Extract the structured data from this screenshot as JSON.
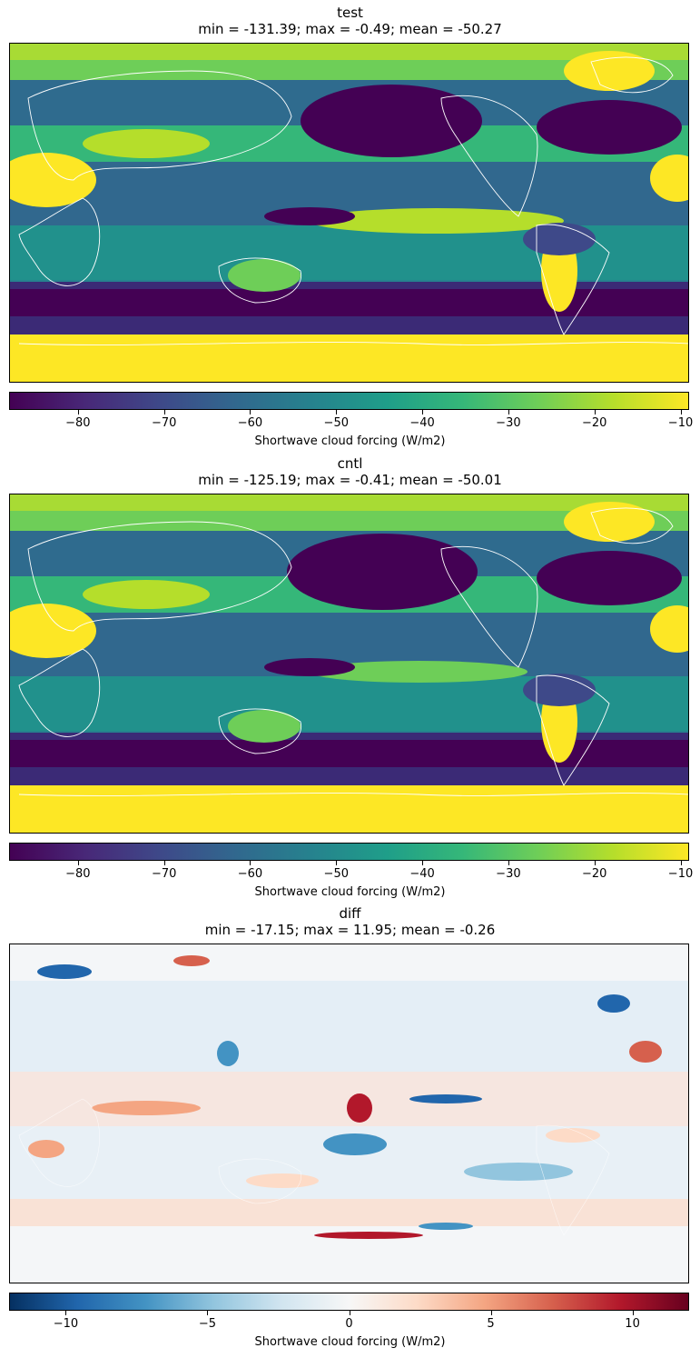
{
  "chart_data": [
    {
      "type": "heatmap",
      "name": "test",
      "subtitle": "min = -131.39; max = -0.49; mean = -50.27",
      "colormap": "viridis",
      "colorbar_label": "Shortwave cloud forcing (W/m2)",
      "colorbar_range": [
        -88,
        -9
      ],
      "colorbar_ticks": [
        -80,
        -70,
        -60,
        -50,
        -40,
        -30,
        -20,
        -10
      ],
      "colorbar_ticklabels": [
        "−80",
        "−70",
        "−60",
        "−50",
        "−40",
        "−30",
        "−20",
        "−10"
      ],
      "stats": {
        "min": -131.39,
        "max": -0.49,
        "mean": -50.27
      }
    },
    {
      "type": "heatmap",
      "name": "cntl",
      "subtitle": "min = -125.19; max = -0.41; mean = -50.01",
      "colormap": "viridis",
      "colorbar_label": "Shortwave cloud forcing (W/m2)",
      "colorbar_range": [
        -88,
        -9
      ],
      "colorbar_ticks": [
        -80,
        -70,
        -60,
        -50,
        -40,
        -30,
        -20,
        -10
      ],
      "colorbar_ticklabels": [
        "−80",
        "−70",
        "−60",
        "−50",
        "−40",
        "−30",
        "−20",
        "−10"
      ],
      "stats": {
        "min": -125.19,
        "max": -0.41,
        "mean": -50.01
      }
    },
    {
      "type": "heatmap",
      "name": "diff",
      "subtitle": "min = -17.15; max = 11.95; mean = -0.26",
      "colormap": "RdBu_r",
      "colorbar_label": "Shortwave cloud forcing (W/m2)",
      "colorbar_range": [
        -12,
        12
      ],
      "colorbar_ticks": [
        -10,
        -5,
        0,
        5,
        10
      ],
      "colorbar_ticklabels": [
        "−10",
        "−5",
        "0",
        "5",
        "10"
      ],
      "stats": {
        "min": -17.15,
        "max": 11.95,
        "mean": -0.26
      }
    }
  ],
  "colors": {
    "viridis": [
      "#440154",
      "#482878",
      "#3e4989",
      "#31688e",
      "#26828e",
      "#1f9e89",
      "#35b779",
      "#6ece58",
      "#b5de2b",
      "#fde725"
    ],
    "rdbu_r": [
      "#053061",
      "#2166ac",
      "#4393c3",
      "#92c5de",
      "#d1e5f0",
      "#f7f7f7",
      "#fddbc7",
      "#f4a582",
      "#d6604d",
      "#b2182b",
      "#67001f"
    ],
    "coastline": "#ffffff"
  }
}
